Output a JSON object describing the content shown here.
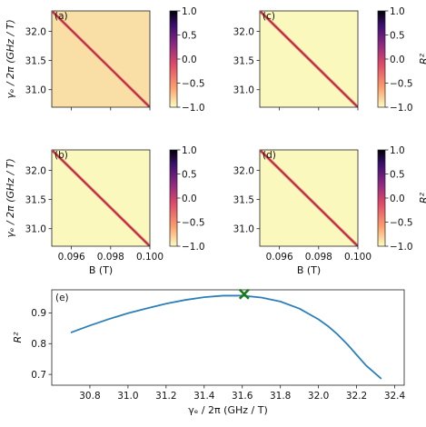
{
  "colors": {
    "curve": "#2d7fb8",
    "marker": "#1a7a1a",
    "heatmap_bg_a": "#f9dfa6",
    "heatmap_bg": "#fbf8be",
    "diag_red": "#c8323c",
    "diag_dark": "#6a1a6a",
    "colormap": [
      "#000004",
      "#3b0f70",
      "#8c2981",
      "#de4968",
      "#fe9f6d",
      "#fcfdbf"
    ]
  },
  "heatmaps": [
    {
      "panel_label": "(a)",
      "xticks": [
        "",
        "",
        ""
      ],
      "yticks": [
        "32.0",
        "31.5",
        "31.0"
      ],
      "ylabel": "γₑ / 2π (GHz / T)",
      "xlabel": "",
      "bg_color_key": "heatmap_bg_a",
      "cbar_ticks": [
        "1.0",
        "0.5",
        "0.0",
        "−0.5",
        "−1.0"
      ],
      "cbar_label": ""
    },
    {
      "panel_label": "(c)",
      "xticks": [
        "",
        "",
        ""
      ],
      "yticks": [
        "32.0",
        "31.5",
        "31.0"
      ],
      "ylabel": "",
      "xlabel": "",
      "bg_color_key": "heatmap_bg",
      "cbar_ticks": [
        "1.0",
        "0.5",
        "0.0",
        "−0.5",
        "−1.0"
      ],
      "cbar_label": "R²"
    },
    {
      "panel_label": "(b)",
      "xticks": [
        "0.096",
        "0.098",
        "0.100"
      ],
      "yticks": [
        "32.0",
        "31.5",
        "31.0"
      ],
      "ylabel": "γₑ / 2π (GHz / T)",
      "xlabel": "B (T)",
      "bg_color_key": "heatmap_bg",
      "cbar_ticks": [
        "1.0",
        "0.5",
        "0.0",
        "−0.5",
        "−1.0"
      ],
      "cbar_label": ""
    },
    {
      "panel_label": "(d)",
      "xticks": [
        "0.096",
        "0.098",
        "0.100"
      ],
      "yticks": [
        "32.0",
        "31.5",
        "31.0"
      ],
      "ylabel": "",
      "xlabel": "B (T)",
      "bg_color_key": "heatmap_bg",
      "cbar_ticks": [
        "1.0",
        "0.5",
        "0.0",
        "−0.5",
        "−1.0"
      ],
      "cbar_label": "R²"
    }
  ],
  "chart_data": [
    {
      "type": "heatmap",
      "panel": "(a)",
      "x_range": [
        0.095,
        0.1
      ],
      "y_range": [
        30.7,
        32.35
      ],
      "xticks": [
        0.096,
        0.098,
        0.1
      ],
      "yticks": [
        31.0,
        31.5,
        32.0
      ],
      "color_range": [
        -1.0,
        1.0
      ],
      "features": "uniform background near -0.5 with a thin diagonal band from top-left to bottom-right"
    },
    {
      "type": "heatmap",
      "panel": "(c)",
      "x_range": [
        0.095,
        0.1
      ],
      "y_range": [
        30.7,
        32.35
      ],
      "color_range": [
        -1.0,
        1.0
      ],
      "features": "uniform background near -1.0 with a thin diagonal band"
    },
    {
      "type": "heatmap",
      "panel": "(b)",
      "x_range": [
        0.095,
        0.1
      ],
      "y_range": [
        30.7,
        32.35
      ],
      "color_range": [
        -1.0,
        1.0
      ],
      "features": "uniform background near -1.0 with a thin diagonal band"
    },
    {
      "type": "heatmap",
      "panel": "(d)",
      "x_range": [
        0.095,
        0.1
      ],
      "y_range": [
        30.7,
        32.35
      ],
      "color_range": [
        -1.0,
        1.0
      ],
      "features": "uniform background near -1.0 with a thin diagonal band"
    },
    {
      "type": "line",
      "panel": "(e)",
      "xlabel": "γₑ / 2π (GHz / T)",
      "ylabel": "R²",
      "xlim": [
        30.6,
        32.45
      ],
      "ylim": [
        0.665,
        0.975
      ],
      "xticks": [
        "30.8",
        "31.0",
        "31.2",
        "31.4",
        "31.6",
        "31.8",
        "32.0",
        "32.2",
        "32.4"
      ],
      "yticks": [
        "0.9",
        "0.8",
        "0.7"
      ],
      "x": [
        30.7,
        30.8,
        30.9,
        31.0,
        31.1,
        31.2,
        31.3,
        31.4,
        31.5,
        31.6,
        31.7,
        31.8,
        31.9,
        32.0,
        32.05,
        32.1,
        32.15,
        32.2,
        32.25,
        32.3,
        32.33
      ],
      "y": [
        0.836,
        0.859,
        0.88,
        0.899,
        0.915,
        0.93,
        0.942,
        0.951,
        0.956,
        0.956,
        0.95,
        0.937,
        0.914,
        0.879,
        0.857,
        0.83,
        0.799,
        0.764,
        0.729,
        0.702,
        0.686
      ],
      "marker": {
        "x": 31.61,
        "y": 0.961,
        "symbol": "x"
      }
    }
  ],
  "panel_e_label": "(e)"
}
